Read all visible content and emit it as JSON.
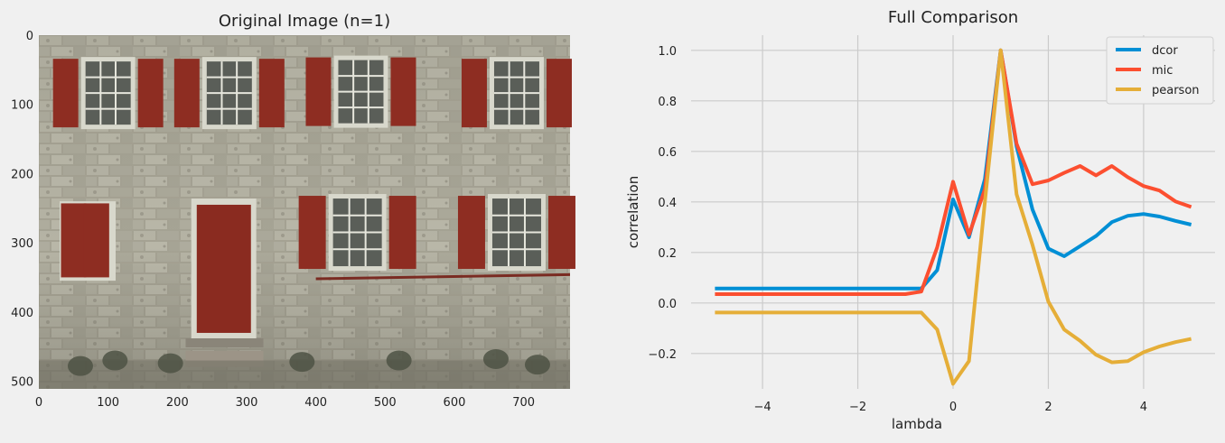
{
  "chart_data": [
    {
      "type": "image",
      "title": "Original Image (n=1)",
      "xticks": [
        "0",
        "100",
        "200",
        "300",
        "400",
        "500",
        "600",
        "700"
      ],
      "yticks": [
        "0",
        "100",
        "200",
        "300",
        "400",
        "500"
      ],
      "xlim": [
        0,
        767
      ],
      "ylim": [
        0,
        511
      ],
      "grid": false
    },
    {
      "type": "line",
      "title": "Full Comparison",
      "xlabel": "lambda",
      "ylabel": "correlation",
      "xlim": [
        -5.5,
        5.5
      ],
      "ylim": [
        -0.34,
        1.06
      ],
      "xticks": [
        "−4",
        "−2",
        "0",
        "2",
        "4"
      ],
      "xtick_values": [
        -4,
        -2,
        0,
        2,
        4
      ],
      "yticks": [
        "−0.2",
        "0.0",
        "0.2",
        "0.4",
        "0.6",
        "0.8",
        "1.0"
      ],
      "ytick_values": [
        -0.2,
        0.0,
        0.2,
        0.4,
        0.6,
        0.8,
        1.0
      ],
      "grid": true,
      "legend_position": "top-right",
      "x": [
        -5,
        -4.667,
        -4.333,
        -4,
        -3.667,
        -3.333,
        -3,
        -2.667,
        -2.333,
        -2,
        -1.667,
        -1.333,
        -1,
        -0.667,
        -0.333,
        0,
        0.333,
        0.667,
        1,
        1.333,
        1.667,
        2,
        2.333,
        2.667,
        3,
        3.333,
        3.667,
        4,
        4.333,
        4.667,
        5
      ],
      "series": [
        {
          "name": "dcor",
          "color": "#008fd5",
          "values": [
            0.057,
            0.057,
            0.057,
            0.057,
            0.057,
            0.057,
            0.057,
            0.057,
            0.057,
            0.057,
            0.057,
            0.057,
            0.057,
            0.057,
            0.13,
            0.41,
            0.26,
            0.49,
            1.0,
            0.62,
            0.37,
            0.215,
            0.185,
            0.225,
            0.265,
            0.32,
            0.345,
            0.352,
            0.342,
            0.325,
            0.31
          ]
        },
        {
          "name": "mic",
          "color": "#fc4f30",
          "values": [
            0.035,
            0.035,
            0.035,
            0.035,
            0.035,
            0.035,
            0.035,
            0.035,
            0.035,
            0.035,
            0.035,
            0.035,
            0.035,
            0.045,
            0.22,
            0.48,
            0.27,
            0.45,
            1.0,
            0.63,
            0.47,
            0.485,
            0.515,
            0.542,
            0.505,
            0.542,
            0.498,
            0.463,
            0.445,
            0.402,
            0.38
          ]
        },
        {
          "name": "pearson",
          "color": "#e5ae38",
          "values": [
            -0.038,
            -0.038,
            -0.038,
            -0.038,
            -0.038,
            -0.038,
            -0.038,
            -0.038,
            -0.038,
            -0.038,
            -0.038,
            -0.038,
            -0.038,
            -0.038,
            -0.105,
            -0.32,
            -0.23,
            0.4,
            1.0,
            0.43,
            0.23,
            0.005,
            -0.105,
            -0.15,
            -0.205,
            -0.235,
            -0.23,
            -0.195,
            -0.172,
            -0.155,
            -0.142
          ]
        }
      ]
    }
  ]
}
